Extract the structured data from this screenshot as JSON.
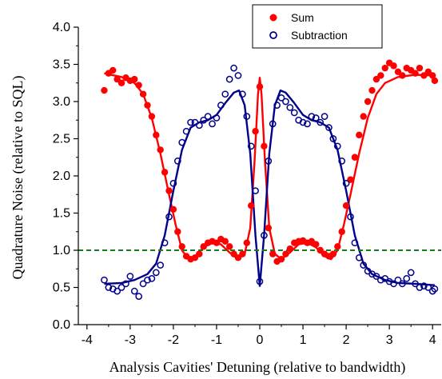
{
  "chart_data": {
    "type": "scatter",
    "xlabel": "Analysis Cavities' Detuning (relative to bandwidth)",
    "ylabel": "Quadrature Noise (relative to SQL)",
    "xlim": [
      -4.2,
      4.2
    ],
    "ylim": [
      0.0,
      4.0
    ],
    "x_ticks": [
      -4,
      -3,
      -2,
      -1,
      0,
      1,
      2,
      3,
      4
    ],
    "y_ticks": [
      0.0,
      0.5,
      1.0,
      1.5,
      2.0,
      2.5,
      3.0,
      3.5,
      4.0
    ],
    "x_tick_labels": [
      "-4",
      "-3",
      "-2",
      "-1",
      "0",
      "1",
      "2",
      "3",
      "4"
    ],
    "y_tick_labels": [
      "0.0",
      "0.5",
      "1.0",
      "1.5",
      "2.0",
      "2.5",
      "3.0",
      "3.5",
      "4.0"
    ],
    "grid": false,
    "legend_position": "top-right",
    "series": [
      {
        "name": "Sum",
        "color": "#ff0000",
        "marker": "filled-circle",
        "points": [
          [
            -3.6,
            3.15
          ],
          [
            -3.5,
            3.38
          ],
          [
            -3.4,
            3.42
          ],
          [
            -3.3,
            3.3
          ],
          [
            -3.2,
            3.25
          ],
          [
            -3.1,
            3.32
          ],
          [
            -3.0,
            3.28
          ],
          [
            -2.9,
            3.3
          ],
          [
            -2.8,
            3.22
          ],
          [
            -2.7,
            3.1
          ],
          [
            -2.6,
            2.95
          ],
          [
            -2.5,
            2.8
          ],
          [
            -2.4,
            2.55
          ],
          [
            -2.3,
            2.35
          ],
          [
            -2.2,
            2.05
          ],
          [
            -2.1,
            1.8
          ],
          [
            -2.0,
            1.55
          ],
          [
            -1.9,
            1.25
          ],
          [
            -1.8,
            1.05
          ],
          [
            -1.7,
            0.92
          ],
          [
            -1.6,
            0.88
          ],
          [
            -1.5,
            0.9
          ],
          [
            -1.4,
            0.95
          ],
          [
            -1.3,
            1.05
          ],
          [
            -1.2,
            1.1
          ],
          [
            -1.1,
            1.12
          ],
          [
            -1.0,
            1.1
          ],
          [
            -0.9,
            1.15
          ],
          [
            -0.8,
            1.12
          ],
          [
            -0.7,
            1.05
          ],
          [
            -0.6,
            0.95
          ],
          [
            -0.5,
            0.9
          ],
          [
            -0.4,
            0.95
          ],
          [
            -0.3,
            1.1
          ],
          [
            -0.2,
            1.6
          ],
          [
            -0.1,
            2.6
          ],
          [
            0.0,
            3.2
          ],
          [
            0.1,
            2.4
          ],
          [
            0.2,
            1.3
          ],
          [
            0.3,
            0.95
          ],
          [
            0.4,
            0.85
          ],
          [
            0.5,
            0.88
          ],
          [
            0.6,
            0.95
          ],
          [
            0.7,
            1.02
          ],
          [
            0.8,
            1.1
          ],
          [
            0.9,
            1.12
          ],
          [
            1.0,
            1.13
          ],
          [
            1.1,
            1.1
          ],
          [
            1.2,
            1.12
          ],
          [
            1.3,
            1.08
          ],
          [
            1.4,
            1.0
          ],
          [
            1.5,
            0.95
          ],
          [
            1.6,
            0.92
          ],
          [
            1.7,
            0.95
          ],
          [
            1.8,
            1.05
          ],
          [
            1.9,
            1.25
          ],
          [
            2.0,
            1.6
          ],
          [
            2.1,
            1.95
          ],
          [
            2.2,
            2.25
          ],
          [
            2.3,
            2.55
          ],
          [
            2.4,
            2.8
          ],
          [
            2.5,
            3.0
          ],
          [
            2.6,
            3.15
          ],
          [
            2.7,
            3.3
          ],
          [
            2.8,
            3.35
          ],
          [
            2.9,
            3.45
          ],
          [
            3.0,
            3.52
          ],
          [
            3.1,
            3.48
          ],
          [
            3.2,
            3.4
          ],
          [
            3.3,
            3.35
          ],
          [
            3.4,
            3.45
          ],
          [
            3.5,
            3.42
          ],
          [
            3.6,
            3.38
          ],
          [
            3.7,
            3.45
          ],
          [
            3.8,
            3.35
          ],
          [
            3.9,
            3.4
          ],
          [
            4.0,
            3.35
          ],
          [
            4.05,
            3.28
          ]
        ],
        "fit_curve": [
          [
            -3.6,
            3.38
          ],
          [
            -3.2,
            3.33
          ],
          [
            -2.9,
            3.25
          ],
          [
            -2.7,
            3.1
          ],
          [
            -2.5,
            2.78
          ],
          [
            -2.3,
            2.3
          ],
          [
            -2.1,
            1.75
          ],
          [
            -1.95,
            1.35
          ],
          [
            -1.8,
            1.0
          ],
          [
            -1.65,
            0.88
          ],
          [
            -1.5,
            0.92
          ],
          [
            -1.3,
            1.04
          ],
          [
            -1.1,
            1.1
          ],
          [
            -0.9,
            1.08
          ],
          [
            -0.7,
            0.97
          ],
          [
            -0.5,
            0.88
          ],
          [
            -0.35,
            0.95
          ],
          [
            -0.22,
            1.3
          ],
          [
            -0.12,
            2.2
          ],
          [
            -0.04,
            3.1
          ],
          [
            0.0,
            3.32
          ],
          [
            0.04,
            3.1
          ],
          [
            0.12,
            2.2
          ],
          [
            0.22,
            1.3
          ],
          [
            0.35,
            0.95
          ],
          [
            0.5,
            0.88
          ],
          [
            0.7,
            0.97
          ],
          [
            0.9,
            1.08
          ],
          [
            1.1,
            1.1
          ],
          [
            1.3,
            1.04
          ],
          [
            1.5,
            0.92
          ],
          [
            1.65,
            0.88
          ],
          [
            1.8,
            1.0
          ],
          [
            1.95,
            1.35
          ],
          [
            2.1,
            1.75
          ],
          [
            2.3,
            2.3
          ],
          [
            2.5,
            2.78
          ],
          [
            2.7,
            3.1
          ],
          [
            2.9,
            3.25
          ],
          [
            3.2,
            3.33
          ],
          [
            3.6,
            3.36
          ],
          [
            4.05,
            3.35
          ]
        ]
      },
      {
        "name": "Subtraction",
        "color": "#00008b",
        "marker": "open-circle",
        "points": [
          [
            -3.6,
            0.6
          ],
          [
            -3.5,
            0.5
          ],
          [
            -3.4,
            0.48
          ],
          [
            -3.3,
            0.45
          ],
          [
            -3.2,
            0.5
          ],
          [
            -3.1,
            0.55
          ],
          [
            -3.0,
            0.65
          ],
          [
            -2.9,
            0.45
          ],
          [
            -2.8,
            0.38
          ],
          [
            -2.7,
            0.55
          ],
          [
            -2.6,
            0.6
          ],
          [
            -2.5,
            0.62
          ],
          [
            -2.4,
            0.7
          ],
          [
            -2.3,
            0.8
          ],
          [
            -2.2,
            1.1
          ],
          [
            -2.1,
            1.45
          ],
          [
            -2.0,
            1.9
          ],
          [
            -1.9,
            2.2
          ],
          [
            -1.8,
            2.45
          ],
          [
            -1.7,
            2.6
          ],
          [
            -1.6,
            2.72
          ],
          [
            -1.5,
            2.72
          ],
          [
            -1.4,
            2.68
          ],
          [
            -1.3,
            2.75
          ],
          [
            -1.2,
            2.8
          ],
          [
            -1.1,
            2.7
          ],
          [
            -1.0,
            2.78
          ],
          [
            -0.9,
            2.95
          ],
          [
            -0.8,
            3.1
          ],
          [
            -0.7,
            3.3
          ],
          [
            -0.6,
            3.45
          ],
          [
            -0.5,
            3.35
          ],
          [
            -0.4,
            3.1
          ],
          [
            -0.3,
            2.8
          ],
          [
            -0.2,
            2.4
          ],
          [
            -0.1,
            1.8
          ],
          [
            0.0,
            0.58
          ],
          [
            0.1,
            1.2
          ],
          [
            0.2,
            2.2
          ],
          [
            0.3,
            2.7
          ],
          [
            0.4,
            2.95
          ],
          [
            0.5,
            3.05
          ],
          [
            0.6,
            3.0
          ],
          [
            0.7,
            2.92
          ],
          [
            0.8,
            2.85
          ],
          [
            0.9,
            2.75
          ],
          [
            1.0,
            2.72
          ],
          [
            1.1,
            2.7
          ],
          [
            1.2,
            2.8
          ],
          [
            1.3,
            2.78
          ],
          [
            1.4,
            2.72
          ],
          [
            1.5,
            2.8
          ],
          [
            1.6,
            2.65
          ],
          [
            1.7,
            2.5
          ],
          [
            1.8,
            2.4
          ],
          [
            1.9,
            2.2
          ],
          [
            2.0,
            1.9
          ],
          [
            2.1,
            1.45
          ],
          [
            2.2,
            1.1
          ],
          [
            2.3,
            0.9
          ],
          [
            2.4,
            0.8
          ],
          [
            2.5,
            0.72
          ],
          [
            2.6,
            0.68
          ],
          [
            2.7,
            0.65
          ],
          [
            2.8,
            0.6
          ],
          [
            2.9,
            0.62
          ],
          [
            3.0,
            0.58
          ],
          [
            3.1,
            0.55
          ],
          [
            3.2,
            0.6
          ],
          [
            3.3,
            0.55
          ],
          [
            3.4,
            0.62
          ],
          [
            3.5,
            0.7
          ],
          [
            3.6,
            0.55
          ],
          [
            3.7,
            0.5
          ],
          [
            3.8,
            0.52
          ],
          [
            3.9,
            0.5
          ],
          [
            4.0,
            0.45
          ],
          [
            4.05,
            0.48
          ]
        ],
        "fit_curve": [
          [
            -3.6,
            0.55
          ],
          [
            -3.2,
            0.56
          ],
          [
            -2.9,
            0.6
          ],
          [
            -2.6,
            0.68
          ],
          [
            -2.4,
            0.82
          ],
          [
            -2.2,
            1.2
          ],
          [
            -2.0,
            1.8
          ],
          [
            -1.8,
            2.35
          ],
          [
            -1.6,
            2.65
          ],
          [
            -1.4,
            2.72
          ],
          [
            -1.2,
            2.75
          ],
          [
            -1.0,
            2.82
          ],
          [
            -0.8,
            2.98
          ],
          [
            -0.6,
            3.12
          ],
          [
            -0.48,
            3.15
          ],
          [
            -0.35,
            2.95
          ],
          [
            -0.22,
            2.3
          ],
          [
            -0.1,
            1.2
          ],
          [
            0.0,
            0.52
          ],
          [
            0.1,
            1.2
          ],
          [
            0.22,
            2.3
          ],
          [
            0.35,
            2.95
          ],
          [
            0.48,
            3.15
          ],
          [
            0.6,
            3.12
          ],
          [
            0.8,
            2.98
          ],
          [
            1.0,
            2.82
          ],
          [
            1.2,
            2.75
          ],
          [
            1.4,
            2.72
          ],
          [
            1.6,
            2.65
          ],
          [
            1.8,
            2.35
          ],
          [
            2.0,
            1.8
          ],
          [
            2.2,
            1.2
          ],
          [
            2.4,
            0.82
          ],
          [
            2.6,
            0.68
          ],
          [
            2.9,
            0.6
          ],
          [
            3.2,
            0.56
          ],
          [
            3.6,
            0.55
          ],
          [
            4.05,
            0.53
          ]
        ]
      }
    ],
    "reference_line": {
      "y": 1.0,
      "color": "#1a7a1a",
      "style": "dashed"
    }
  }
}
